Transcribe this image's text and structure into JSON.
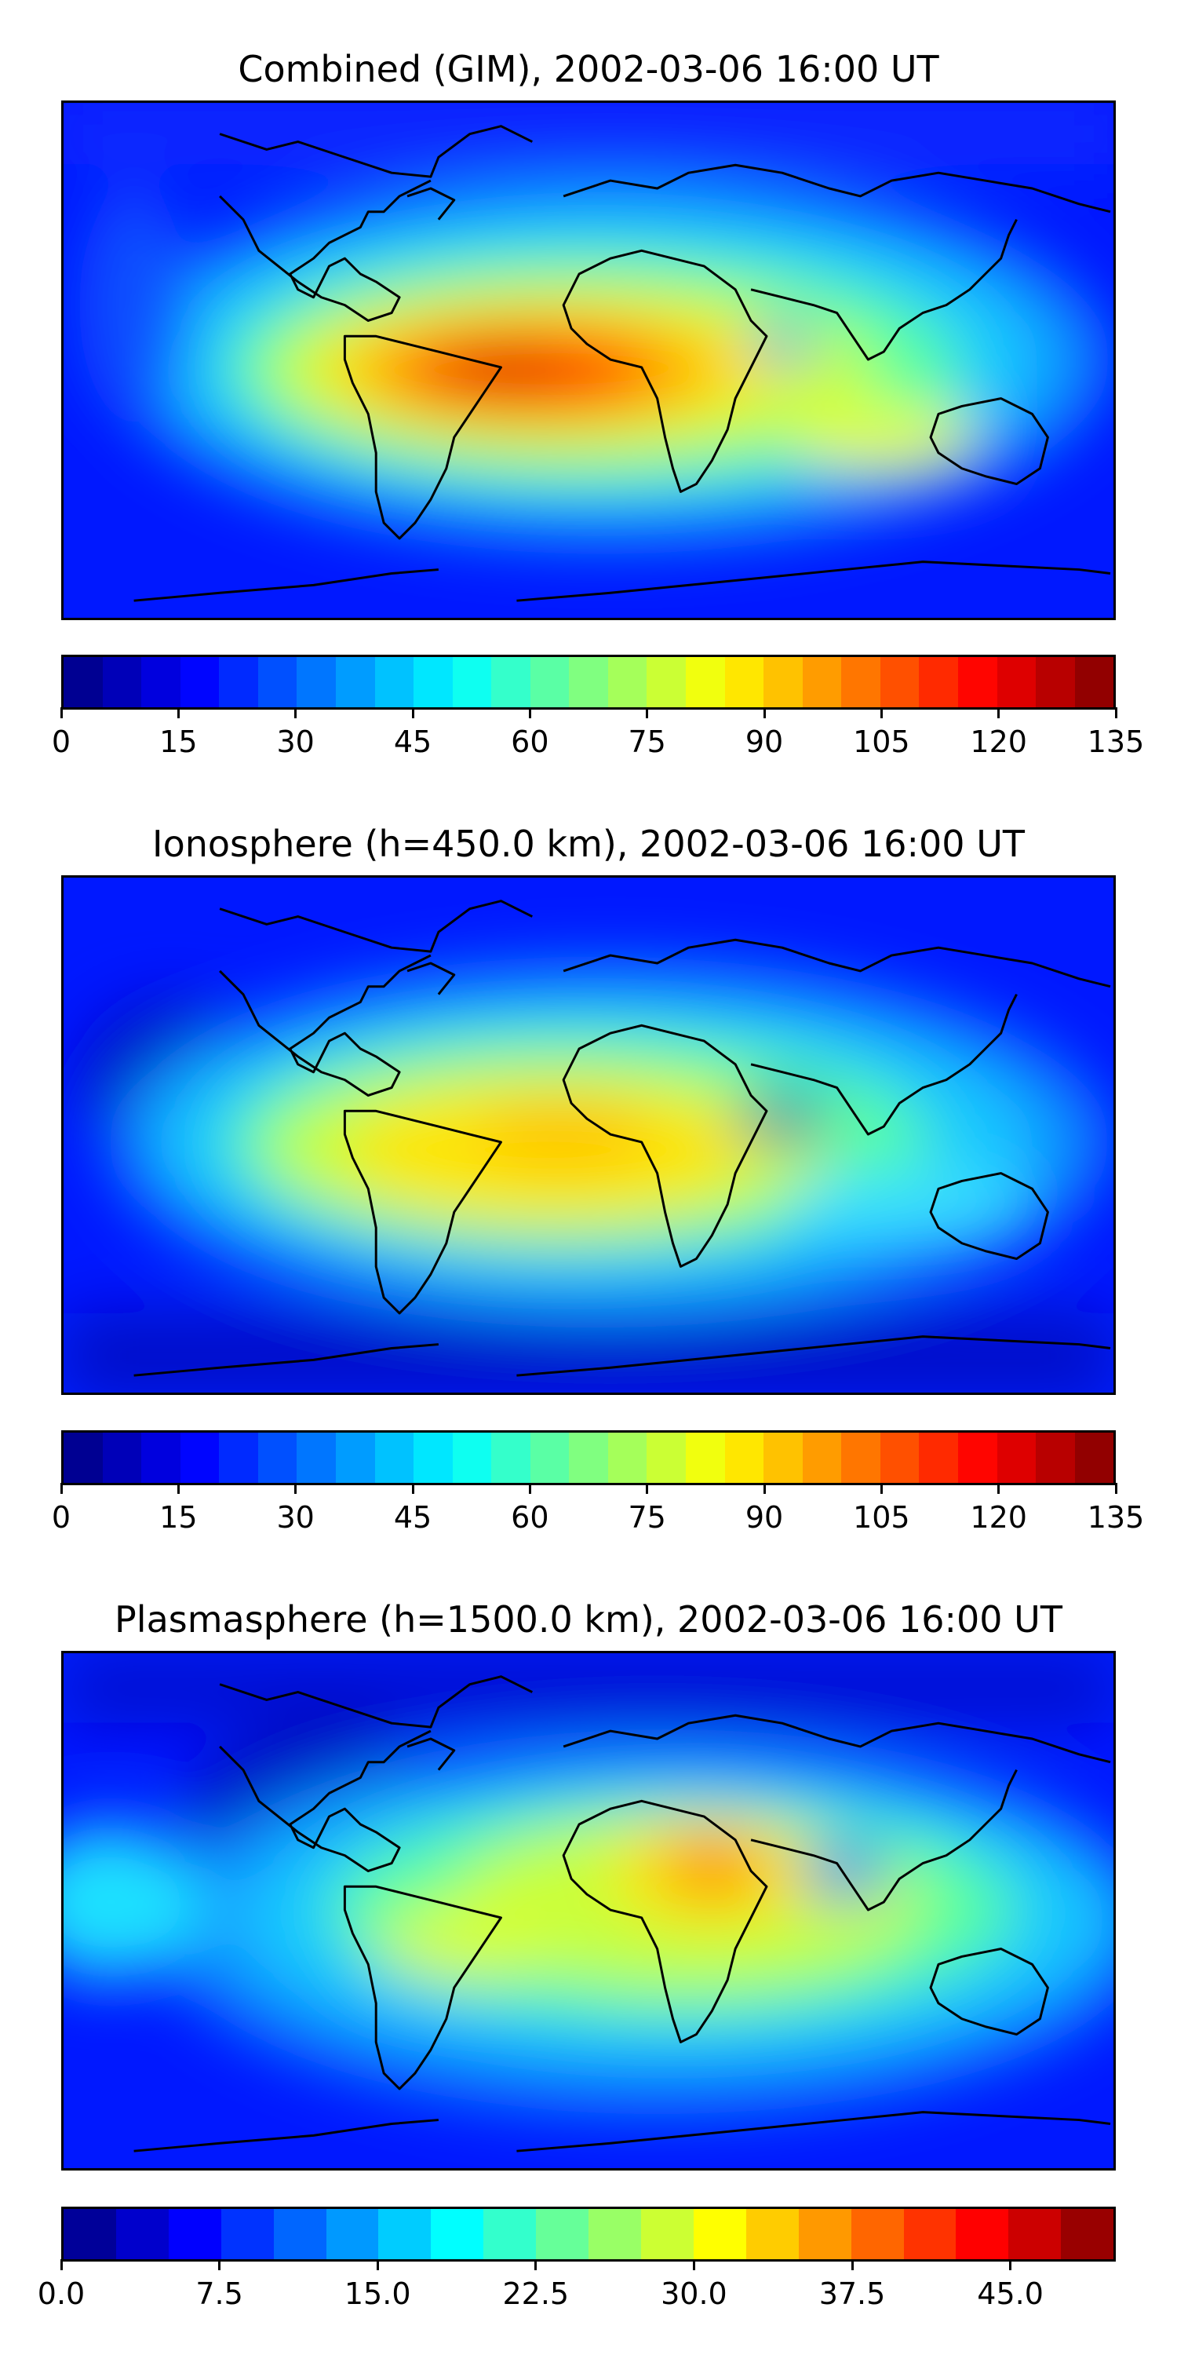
{
  "panels": [
    {
      "title": "Combined (GIM), 2002-03-06 16:00 UT",
      "vmin": 0,
      "vmax": 135,
      "levels": 27,
      "ticks": [
        "0",
        "15",
        "30",
        "45",
        "60",
        "75",
        "90",
        "105",
        "120",
        "135"
      ]
    },
    {
      "title": "Ionosphere  (h=450.0 km), 2002-03-06 16:00 UT",
      "vmin": 0,
      "vmax": 135,
      "levels": 27,
      "ticks": [
        "0",
        "15",
        "30",
        "45",
        "60",
        "75",
        "90",
        "105",
        "120",
        "135"
      ]
    },
    {
      "title": "Plasmasphere (h=1500.0 km), 2002-03-06 16:00 UT",
      "vmin": 0,
      "vmax": 50,
      "levels": 20,
      "ticks": [
        "0.0",
        "7.5",
        "15.0",
        "22.5",
        "30.0",
        "37.5",
        "45.0"
      ]
    }
  ],
  "colormap": "jet",
  "coastline_color": "#000000"
}
